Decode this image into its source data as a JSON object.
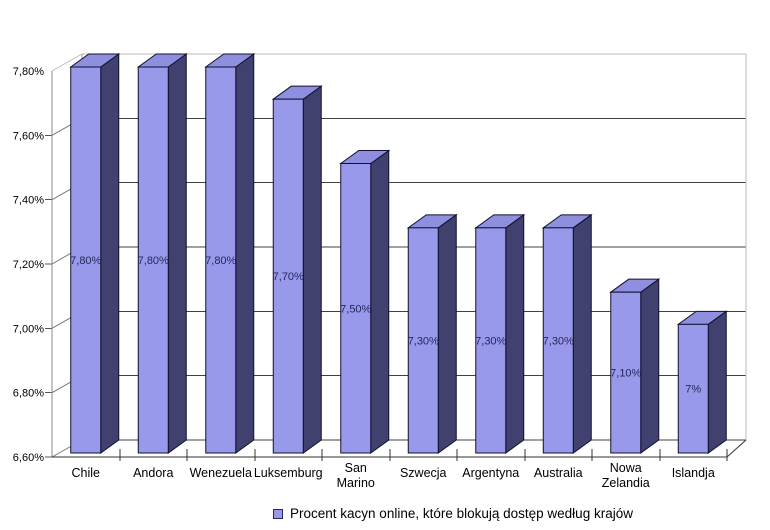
{
  "page": {
    "background": "#ffffff"
  },
  "legend": {
    "label": "Procent kacyn online, które blokują dostęp według krajów"
  },
  "chart_data": {
    "type": "bar",
    "style": "3d-column",
    "title": "",
    "xlabel": "",
    "ylabel": "",
    "categories": [
      "Chile",
      "Andora",
      "Wenezuela",
      "Luksemburg",
      "San Marino",
      "Szwecja",
      "Argentyna",
      "Australia",
      "Nowa Zelandia",
      "Islandja"
    ],
    "values": [
      7.8,
      7.8,
      7.8,
      7.7,
      7.5,
      7.3,
      7.3,
      7.3,
      7.1,
      7.0
    ],
    "value_labels": [
      "7,80%",
      "7,80%",
      "7,80%",
      "7,70%",
      "7,50%",
      "7,30%",
      "7,30%",
      "7,30%",
      "7,10%",
      "7%"
    ],
    "ylim": [
      6.6,
      7.8
    ],
    "y_tick_values": [
      7.8,
      7.6,
      7.4,
      7.2,
      7.0,
      6.8,
      6.6
    ],
    "y_tick_labels": [
      "7,80%",
      "7,60%",
      "7,40%",
      "7,20%",
      "7,00%",
      "6,80%",
      "6,60%"
    ],
    "grid": true,
    "legend_position": "bottom",
    "legend_label": "Procent kacyn online, które blokują dostęp według krajów",
    "colors": {
      "bar_front": "#9999ec",
      "bar_side": "#414170",
      "bar_top": "#8f8fe0",
      "bar_border": "#10102e",
      "value_label_text": "#26265a",
      "axis_text": "#000000",
      "gridline": "#404040",
      "wall_edge_light": "#bbbbbb",
      "wall_edge_mid": "#999999",
      "axis_line": "#333333",
      "front_axis_line": "#888888"
    }
  }
}
